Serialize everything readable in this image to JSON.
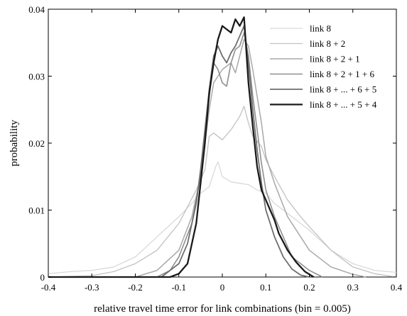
{
  "chart_data": {
    "type": "line",
    "title": "",
    "xlabel": "relative travel time error for link combinations (bin = 0.005)",
    "ylabel": "probability",
    "xlim": [
      -0.4,
      0.4
    ],
    "ylim": [
      0,
      0.04
    ],
    "xticks": [
      "-0.4",
      "-0.3",
      "-0.2",
      "-0.1",
      "0",
      "0.1",
      "0.2",
      "0.3",
      "0.4"
    ],
    "yticks": [
      "0",
      "0.01",
      "0.02",
      "0.03",
      "0.04"
    ],
    "legend_position": "top-right",
    "grid": false,
    "series": [
      {
        "name": "link 8",
        "color": "#d9d9d9",
        "width": 1.3,
        "points": [
          [
            -0.4,
            0.0005
          ],
          [
            -0.35,
            0.0008
          ],
          [
            -0.3,
            0.001
          ],
          [
            -0.25,
            0.0015
          ],
          [
            -0.2,
            0.003
          ],
          [
            -0.15,
            0.006
          ],
          [
            -0.1,
            0.009
          ],
          [
            -0.07,
            0.011
          ],
          [
            -0.05,
            0.0125
          ],
          [
            -0.03,
            0.0135
          ],
          [
            -0.015,
            0.0165
          ],
          [
            -0.01,
            0.0172
          ],
          [
            0,
            0.015
          ],
          [
            0.02,
            0.0142
          ],
          [
            0.04,
            0.014
          ],
          [
            0.06,
            0.0138
          ],
          [
            0.08,
            0.013
          ],
          [
            0.1,
            0.0125
          ],
          [
            0.12,
            0.011
          ],
          [
            0.15,
            0.0095
          ],
          [
            0.18,
            0.008
          ],
          [
            0.2,
            0.007
          ],
          [
            0.25,
            0.004
          ],
          [
            0.3,
            0.002
          ],
          [
            0.35,
            0.001
          ],
          [
            0.4,
            0.0007
          ]
        ]
      },
      {
        "name": "link 8 + 2",
        "color": "#c2c2c2",
        "width": 1.3,
        "points": [
          [
            -0.4,
            0
          ],
          [
            -0.3,
            0.0002
          ],
          [
            -0.25,
            0.0008
          ],
          [
            -0.2,
            0.002
          ],
          [
            -0.15,
            0.004
          ],
          [
            -0.1,
            0.008
          ],
          [
            -0.06,
            0.013
          ],
          [
            -0.04,
            0.016
          ],
          [
            -0.03,
            0.021
          ],
          [
            -0.02,
            0.0215
          ],
          [
            0,
            0.0205
          ],
          [
            0.02,
            0.022
          ],
          [
            0.04,
            0.024
          ],
          [
            0.05,
            0.0255
          ],
          [
            0.06,
            0.023
          ],
          [
            0.07,
            0.021
          ],
          [
            0.09,
            0.0195
          ],
          [
            0.1,
            0.0175
          ],
          [
            0.12,
            0.015
          ],
          [
            0.15,
            0.0115
          ],
          [
            0.18,
            0.009
          ],
          [
            0.2,
            0.0075
          ],
          [
            0.25,
            0.004
          ],
          [
            0.3,
            0.0015
          ],
          [
            0.35,
            0.0005
          ],
          [
            0.4,
            0
          ]
        ]
      },
      {
        "name": "link 8 + 2 + 1",
        "color": "#a8a8a8",
        "width": 1.5,
        "points": [
          [
            -0.4,
            0
          ],
          [
            -0.2,
            0
          ],
          [
            -0.15,
            0.001
          ],
          [
            -0.1,
            0.004
          ],
          [
            -0.07,
            0.009
          ],
          [
            -0.05,
            0.015
          ],
          [
            -0.04,
            0.02
          ],
          [
            -0.03,
            0.025
          ],
          [
            -0.02,
            0.029
          ],
          [
            0,
            0.031
          ],
          [
            0.02,
            0.032
          ],
          [
            0.03,
            0.0305
          ],
          [
            0.04,
            0.033
          ],
          [
            0.05,
            0.0355
          ],
          [
            0.06,
            0.0345
          ],
          [
            0.07,
            0.031
          ],
          [
            0.08,
            0.027
          ],
          [
            0.09,
            0.023
          ],
          [
            0.1,
            0.018
          ],
          [
            0.12,
            0.014
          ],
          [
            0.15,
            0.009
          ],
          [
            0.18,
            0.006
          ],
          [
            0.2,
            0.004
          ],
          [
            0.25,
            0.0015
          ],
          [
            0.3,
            0.0004
          ],
          [
            0.33,
            0
          ]
        ]
      },
      {
        "name": "link 8 + 2 + 1 + 6",
        "color": "#8f8f8f",
        "width": 1.6,
        "points": [
          [
            -0.4,
            0
          ],
          [
            -0.15,
            0
          ],
          [
            -0.12,
            0.001
          ],
          [
            -0.1,
            0.003
          ],
          [
            -0.07,
            0.008
          ],
          [
            -0.05,
            0.015
          ],
          [
            -0.04,
            0.021
          ],
          [
            -0.03,
            0.027
          ],
          [
            -0.02,
            0.032
          ],
          [
            -0.01,
            0.031
          ],
          [
            0,
            0.029
          ],
          [
            0.01,
            0.0285
          ],
          [
            0.02,
            0.032
          ],
          [
            0.03,
            0.034
          ],
          [
            0.04,
            0.0345
          ],
          [
            0.05,
            0.0365
          ],
          [
            0.06,
            0.033
          ],
          [
            0.07,
            0.027
          ],
          [
            0.08,
            0.022
          ],
          [
            0.09,
            0.017
          ],
          [
            0.1,
            0.013
          ],
          [
            0.12,
            0.009
          ],
          [
            0.14,
            0.006
          ],
          [
            0.16,
            0.003
          ],
          [
            0.2,
            0.001
          ],
          [
            0.23,
            0
          ]
        ]
      },
      {
        "name": "link 8 + ... + 6 + 5",
        "color": "#6e6e6e",
        "width": 1.8,
        "points": [
          [
            -0.4,
            0
          ],
          [
            -0.14,
            0
          ],
          [
            -0.1,
            0.002
          ],
          [
            -0.08,
            0.005
          ],
          [
            -0.06,
            0.011
          ],
          [
            -0.05,
            0.016
          ],
          [
            -0.04,
            0.022
          ],
          [
            -0.03,
            0.028
          ],
          [
            -0.02,
            0.033
          ],
          [
            -0.01,
            0.0345
          ],
          [
            0,
            0.033
          ],
          [
            0.01,
            0.032
          ],
          [
            0.02,
            0.0335
          ],
          [
            0.03,
            0.0345
          ],
          [
            0.04,
            0.036
          ],
          [
            0.05,
            0.0375
          ],
          [
            0.06,
            0.032
          ],
          [
            0.07,
            0.025
          ],
          [
            0.08,
            0.019
          ],
          [
            0.09,
            0.014
          ],
          [
            0.1,
            0.01
          ],
          [
            0.12,
            0.006
          ],
          [
            0.14,
            0.003
          ],
          [
            0.16,
            0.0012
          ],
          [
            0.18,
            0.0003
          ],
          [
            0.2,
            0
          ]
        ]
      },
      {
        "name": "link 8 + ... + 5 + 4",
        "color": "#1a1a1a",
        "width": 2.3,
        "points": [
          [
            -0.4,
            0
          ],
          [
            -0.12,
            0
          ],
          [
            -0.1,
            0.0005
          ],
          [
            -0.08,
            0.002
          ],
          [
            -0.06,
            0.008
          ],
          [
            -0.05,
            0.014
          ],
          [
            -0.04,
            0.02
          ],
          [
            -0.03,
            0.0275
          ],
          [
            -0.02,
            0.032
          ],
          [
            -0.01,
            0.0355
          ],
          [
            0,
            0.0375
          ],
          [
            0.01,
            0.037
          ],
          [
            0.02,
            0.0365
          ],
          [
            0.03,
            0.0385
          ],
          [
            0.04,
            0.0375
          ],
          [
            0.05,
            0.0388
          ],
          [
            0.06,
            0.029
          ],
          [
            0.07,
            0.0225
          ],
          [
            0.08,
            0.0165
          ],
          [
            0.09,
            0.013
          ],
          [
            0.1,
            0.0115
          ],
          [
            0.11,
            0.01
          ],
          [
            0.12,
            0.0085
          ],
          [
            0.13,
            0.0065
          ],
          [
            0.15,
            0.004
          ],
          [
            0.17,
            0.0022
          ],
          [
            0.19,
            0.0008
          ],
          [
            0.21,
            0
          ]
        ]
      }
    ]
  }
}
